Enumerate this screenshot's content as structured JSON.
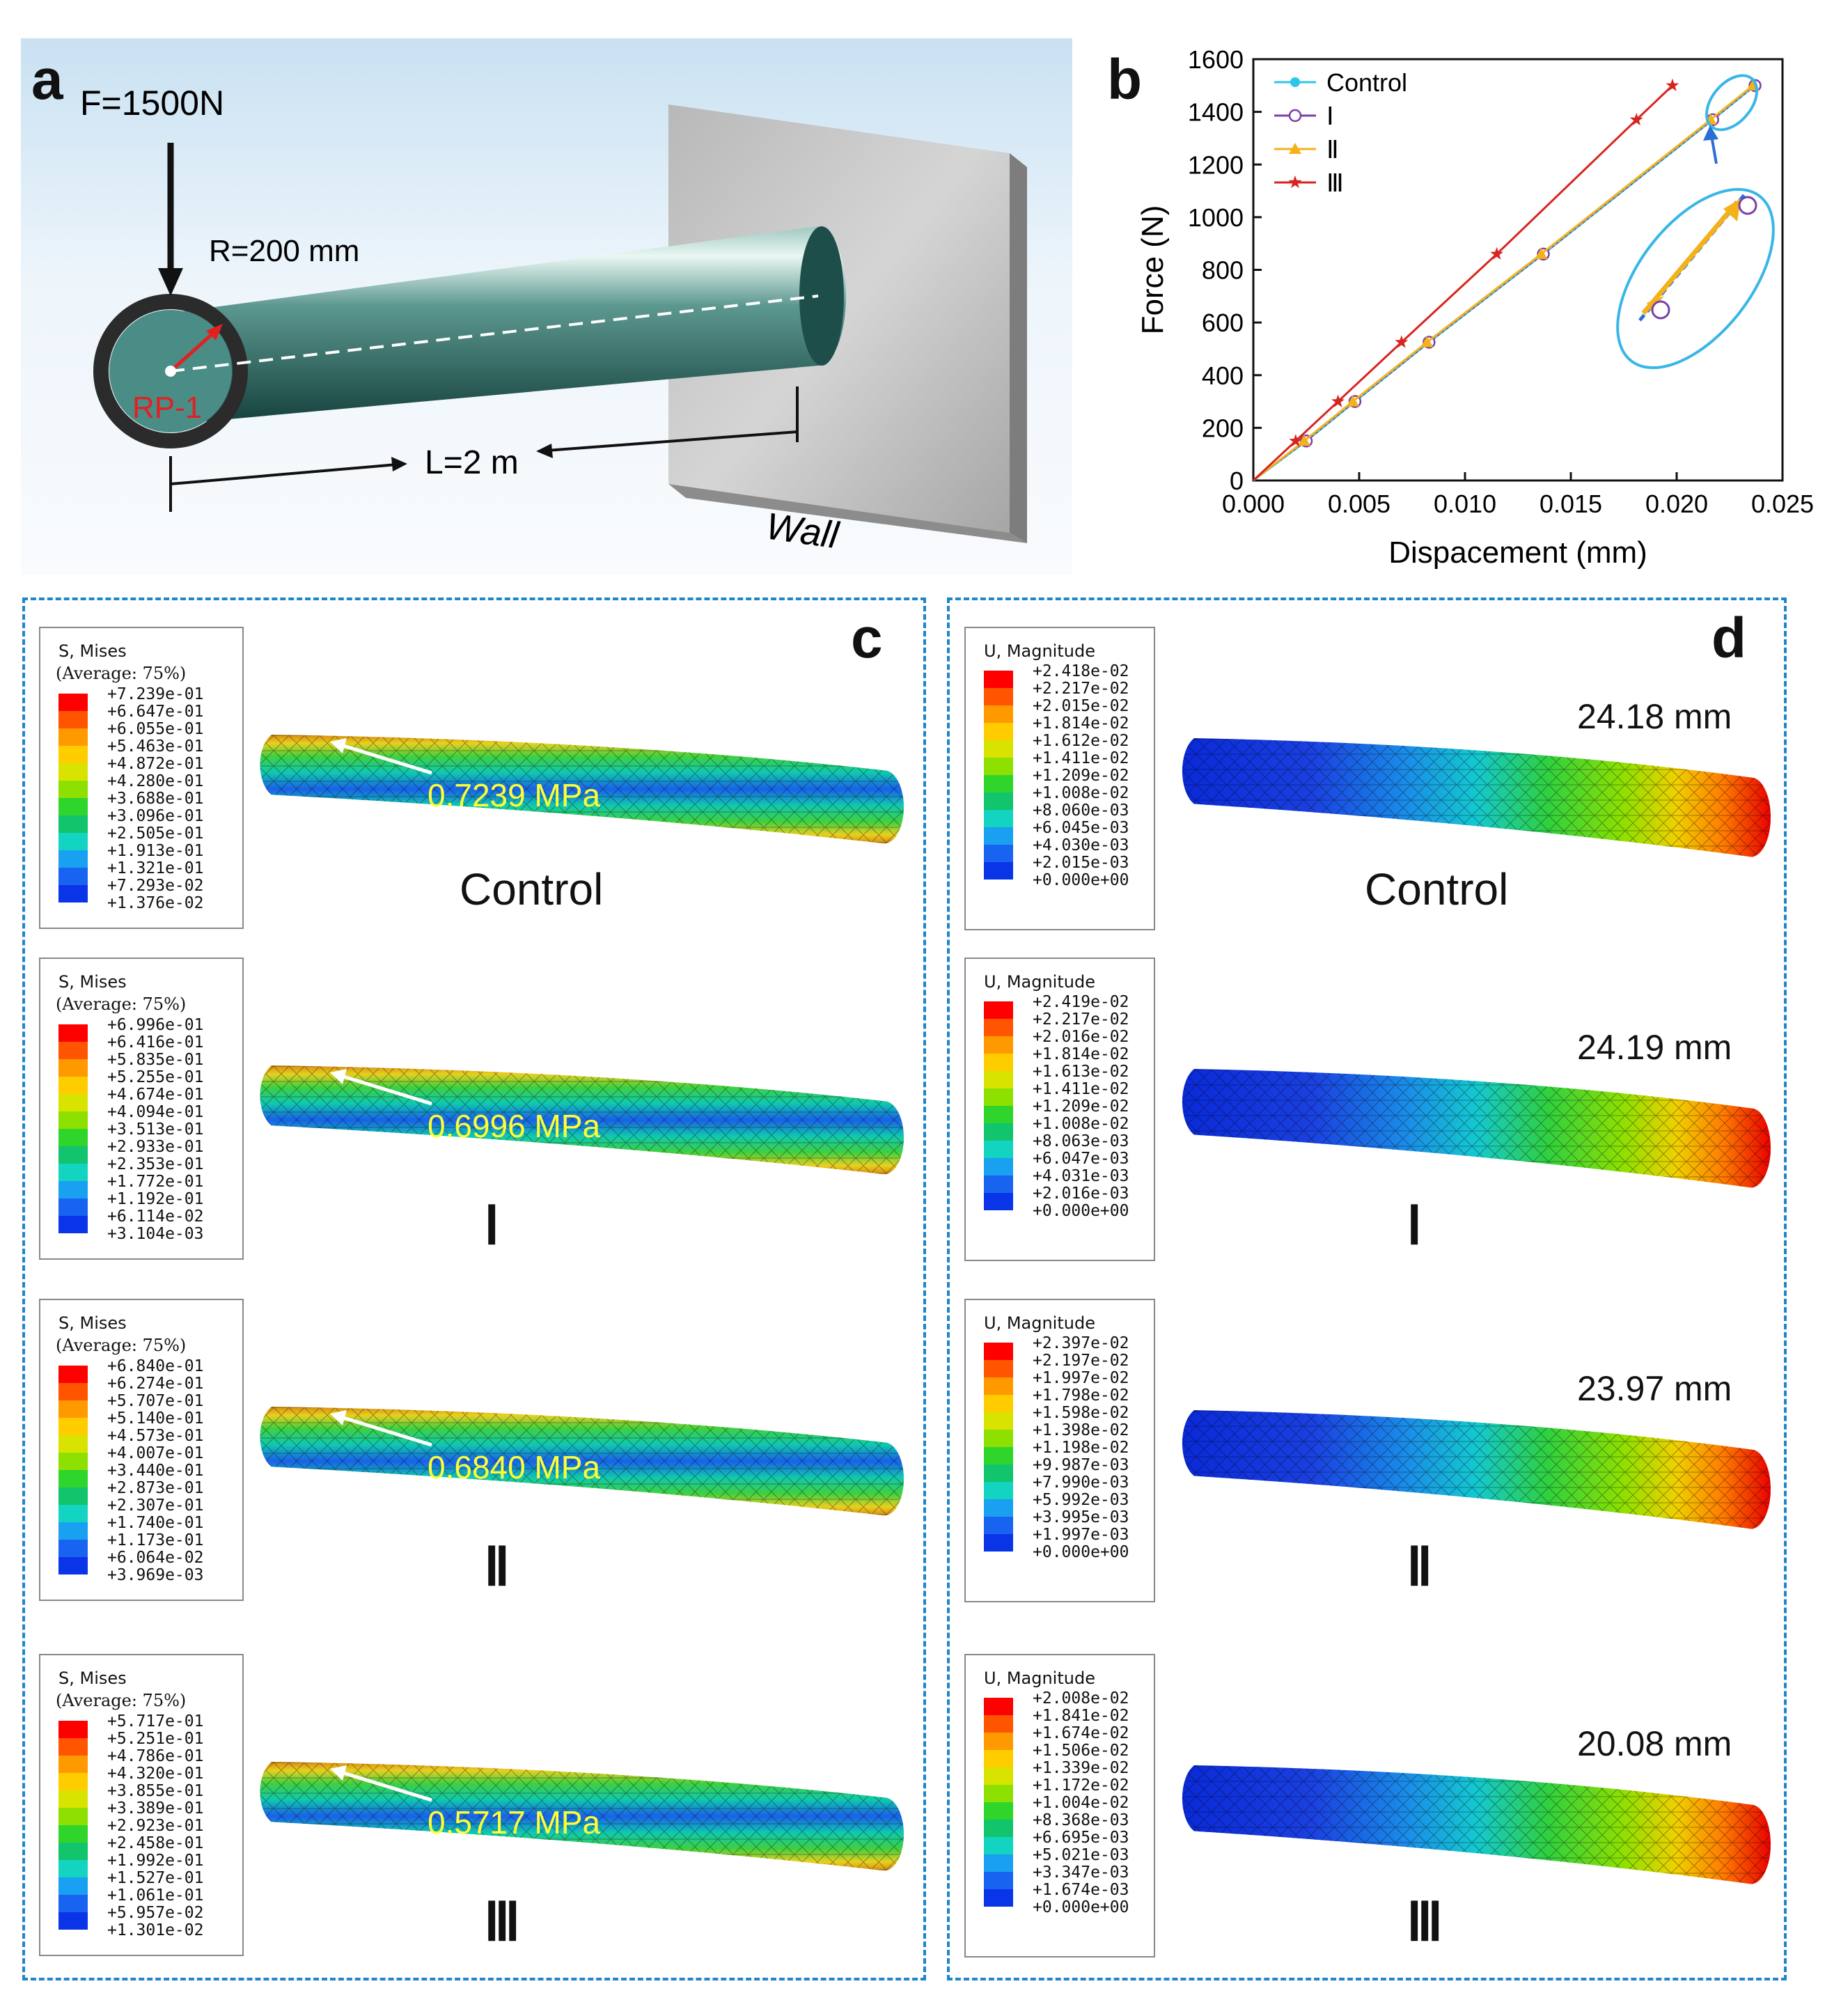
{
  "panel_a": {
    "letter": "a",
    "force_label": "F=1500N",
    "radius_label": "R=200 mm",
    "point_label": "RP-1",
    "length_label": "L=2 m",
    "wall_label": "Wall"
  },
  "panel_b": {
    "letter": "b"
  },
  "chart_data": {
    "type": "line",
    "title": "",
    "xlabel": "Dispacement (mm)",
    "ylabel": "Force (N)",
    "xlim": [
      0,
      0.025
    ],
    "ylim": [
      0,
      1600
    ],
    "xticks": [
      "0.000",
      "0.005",
      "0.010",
      "0.015",
      "0.020",
      "0.025"
    ],
    "yticks": [
      "0",
      "200",
      "400",
      "600",
      "800",
      "1000",
      "1200",
      "1400",
      "1600"
    ],
    "legend_position": "top-left",
    "series": [
      {
        "name": "Control",
        "color": "#2ec6e8",
        "marker": "circle",
        "x": [
          0,
          0.0025,
          0.0048,
          0.0083,
          0.0137,
          0.0217,
          0.0237
        ],
        "y": [
          0,
          150,
          300,
          525,
          860,
          1370,
          1500
        ]
      },
      {
        "name": "Ⅰ",
        "color": "#7b3fa8",
        "marker": "open-circle",
        "x": [
          0,
          0.0025,
          0.0048,
          0.0083,
          0.0137,
          0.0217,
          0.0237
        ],
        "y": [
          0,
          150,
          300,
          525,
          860,
          1370,
          1500
        ]
      },
      {
        "name": "Ⅱ",
        "color": "#f4b21a",
        "marker": "triangle",
        "x": [
          0,
          0.0024,
          0.0047,
          0.0082,
          0.0136,
          0.0216,
          0.0236
        ],
        "y": [
          0,
          150,
          300,
          525,
          860,
          1370,
          1500
        ]
      },
      {
        "name": "Ⅲ",
        "color": "#d8241f",
        "marker": "star",
        "x": [
          0,
          0.002,
          0.004,
          0.007,
          0.0115,
          0.0181,
          0.0198
        ],
        "y": [
          0,
          150,
          300,
          525,
          860,
          1370,
          1500
        ]
      }
    ]
  },
  "panel_c": {
    "letter": "c",
    "legend_title": "S, Mises",
    "legend_sub": "(Average: 75%)",
    "models": [
      {
        "name": "Control",
        "roman": false,
        "max_value": "0.7239 MPa",
        "ticks": [
          "+7.239e-01",
          "+6.647e-01",
          "+6.055e-01",
          "+5.463e-01",
          "+4.872e-01",
          "+4.280e-01",
          "+3.688e-01",
          "+3.096e-01",
          "+2.505e-01",
          "+1.913e-01",
          "+1.321e-01",
          "+7.293e-02",
          "+1.376e-02"
        ]
      },
      {
        "name": "Ⅰ",
        "roman": true,
        "max_value": "0.6996 MPa",
        "ticks": [
          "+6.996e-01",
          "+6.416e-01",
          "+5.835e-01",
          "+5.255e-01",
          "+4.674e-01",
          "+4.094e-01",
          "+3.513e-01",
          "+2.933e-01",
          "+2.353e-01",
          "+1.772e-01",
          "+1.192e-01",
          "+6.114e-02",
          "+3.104e-03"
        ]
      },
      {
        "name": "Ⅱ",
        "roman": true,
        "max_value": "0.6840 MPa",
        "ticks": [
          "+6.840e-01",
          "+6.274e-01",
          "+5.707e-01",
          "+5.140e-01",
          "+4.573e-01",
          "+4.007e-01",
          "+3.440e-01",
          "+2.873e-01",
          "+2.307e-01",
          "+1.740e-01",
          "+1.173e-01",
          "+6.064e-02",
          "+3.969e-03"
        ]
      },
      {
        "name": "Ⅲ",
        "roman": true,
        "max_value": "0.5717 MPa",
        "ticks": [
          "+5.717e-01",
          "+5.251e-01",
          "+4.786e-01",
          "+4.320e-01",
          "+3.855e-01",
          "+3.389e-01",
          "+2.923e-01",
          "+2.458e-01",
          "+1.992e-01",
          "+1.527e-01",
          "+1.061e-01",
          "+5.957e-02",
          "+1.301e-02"
        ]
      }
    ]
  },
  "panel_d": {
    "letter": "d",
    "legend_title": "U, Magnitude",
    "models": [
      {
        "name": "Control",
        "roman": false,
        "max_value": "24.18 mm",
        "ticks": [
          "+2.418e-02",
          "+2.217e-02",
          "+2.015e-02",
          "+1.814e-02",
          "+1.612e-02",
          "+1.411e-02",
          "+1.209e-02",
          "+1.008e-02",
          "+8.060e-03",
          "+6.045e-03",
          "+4.030e-03",
          "+2.015e-03",
          "+0.000e+00"
        ]
      },
      {
        "name": "Ⅰ",
        "roman": true,
        "max_value": "24.19 mm",
        "ticks": [
          "+2.419e-02",
          "+2.217e-02",
          "+2.016e-02",
          "+1.814e-02",
          "+1.613e-02",
          "+1.411e-02",
          "+1.209e-02",
          "+1.008e-02",
          "+8.063e-03",
          "+6.047e-03",
          "+4.031e-03",
          "+2.016e-03",
          "+0.000e+00"
        ]
      },
      {
        "name": "Ⅱ",
        "roman": true,
        "max_value": "23.97 mm",
        "ticks": [
          "+2.397e-02",
          "+2.197e-02",
          "+1.997e-02",
          "+1.798e-02",
          "+1.598e-02",
          "+1.398e-02",
          "+1.198e-02",
          "+9.987e-03",
          "+7.990e-03",
          "+5.992e-03",
          "+3.995e-03",
          "+1.997e-03",
          "+0.000e+00"
        ]
      },
      {
        "name": "Ⅲ",
        "roman": true,
        "max_value": "20.08 mm",
        "ticks": [
          "+2.008e-02",
          "+1.841e-02",
          "+1.674e-02",
          "+1.506e-02",
          "+1.339e-02",
          "+1.172e-02",
          "+1.004e-02",
          "+8.368e-03",
          "+6.695e-03",
          "+5.021e-03",
          "+3.347e-03",
          "+1.674e-03",
          "+0.000e+00"
        ]
      }
    ]
  },
  "colormap": [
    "#ff0000",
    "#ff5500",
    "#ff9900",
    "#ffcc00",
    "#d8e400",
    "#8ee000",
    "#2fd52a",
    "#12c46c",
    "#12d4c0",
    "#1aa0f0",
    "#1864f0",
    "#0a34e8",
    "#0000d8"
  ]
}
